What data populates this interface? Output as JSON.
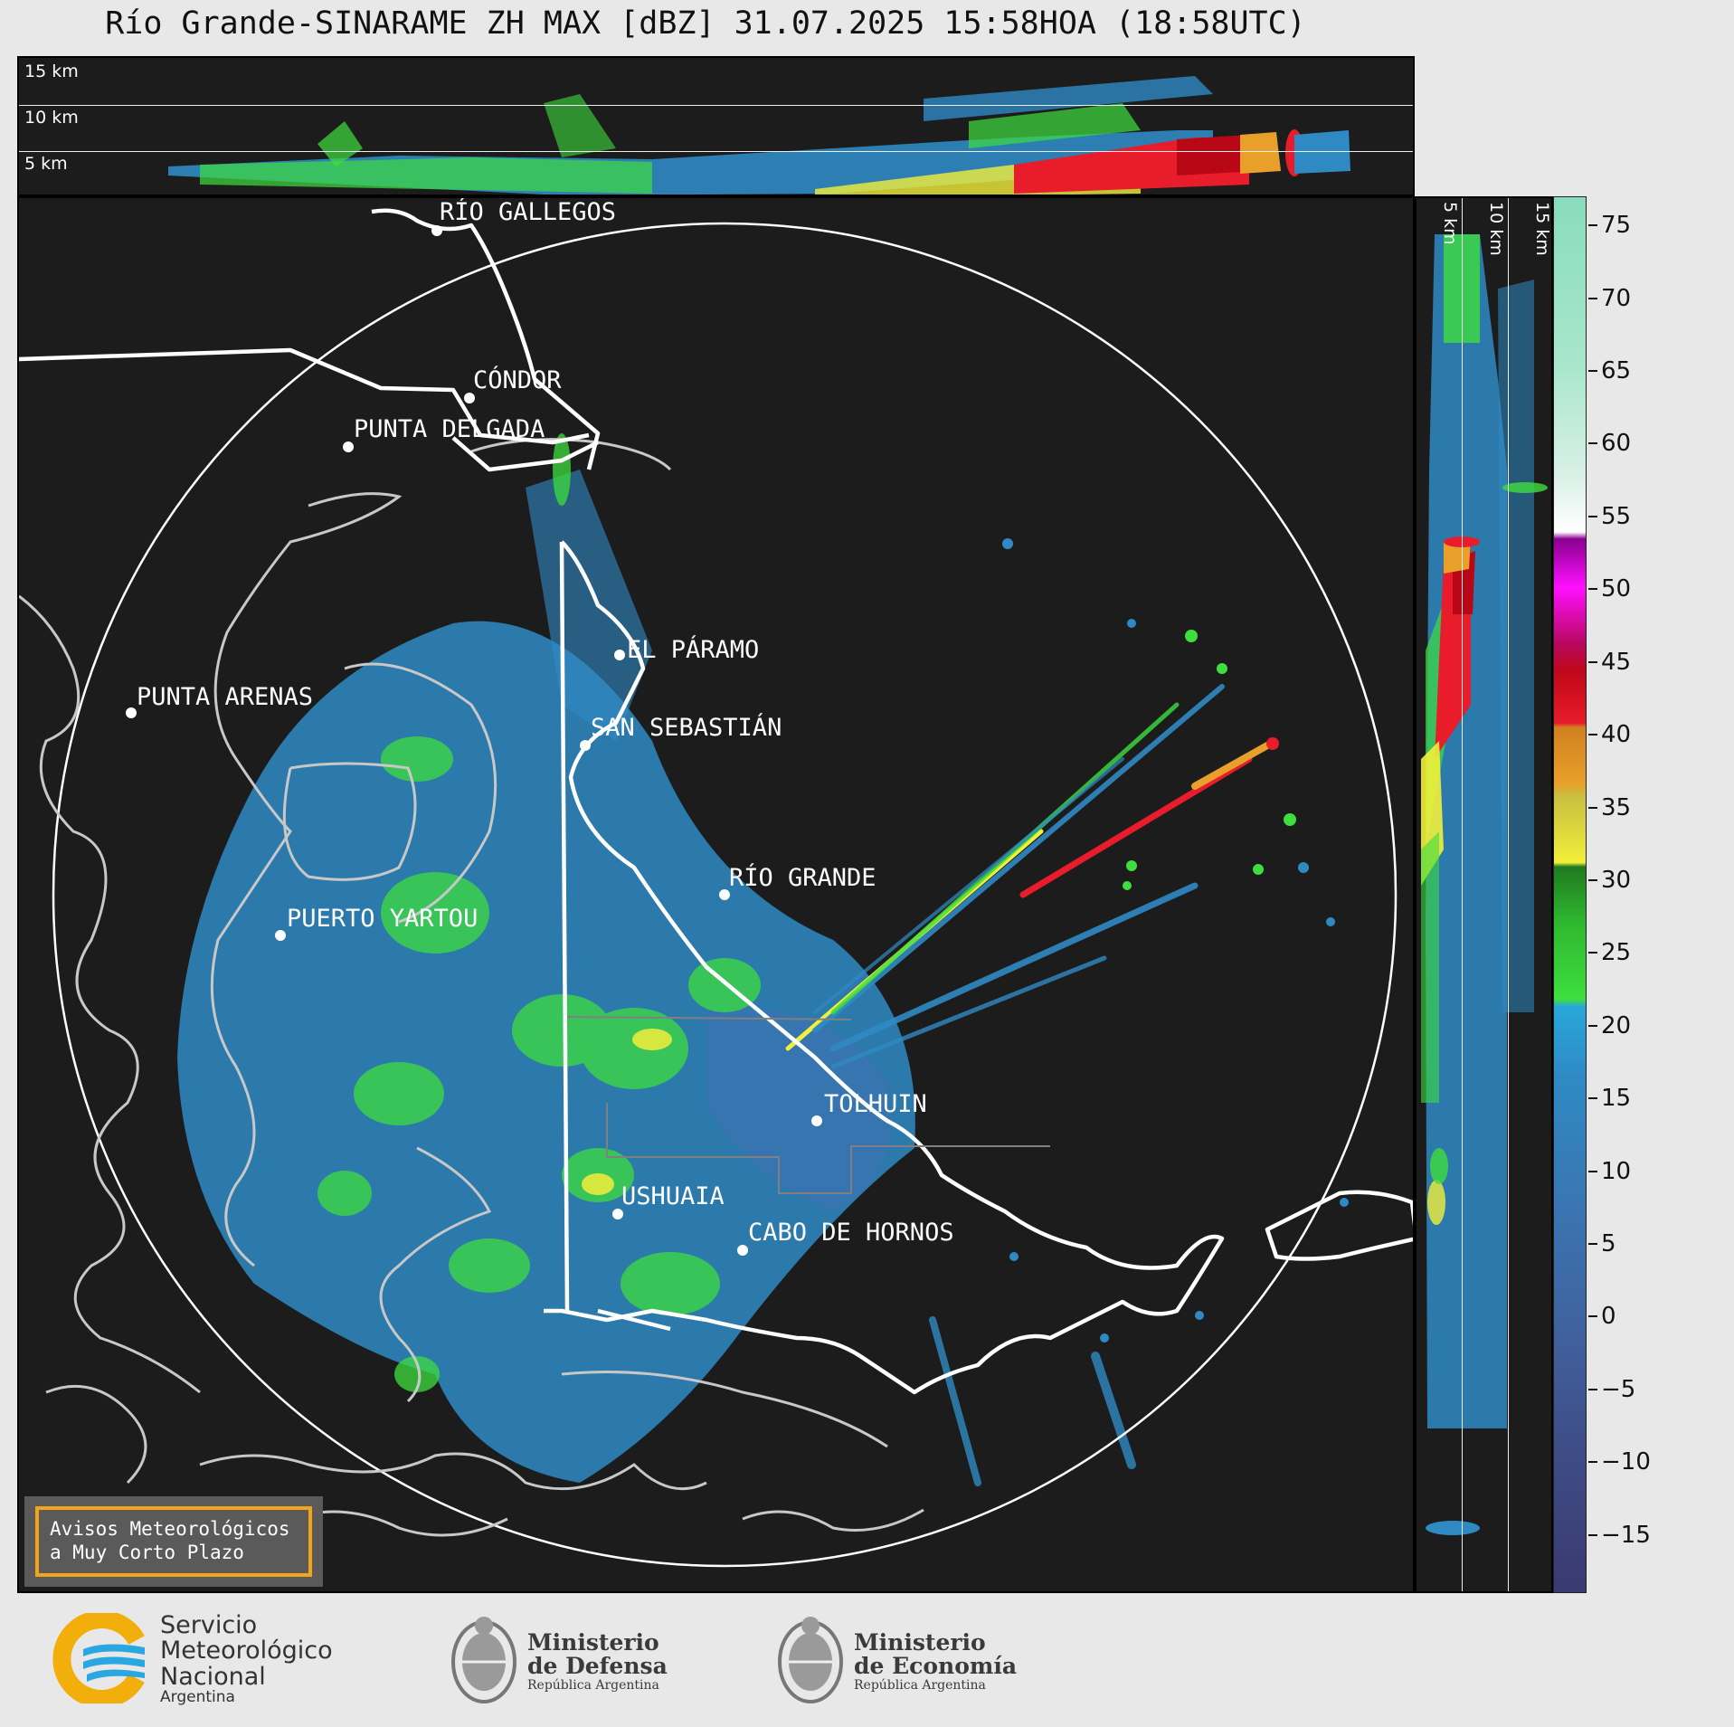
{
  "title": "Río Grande-SINARAME ZH MAX [dBZ] 31.07.2025 15:58HOA (18:58UTC)",
  "top_panel": {
    "height_labels": [
      "15 km",
      "10 km",
      "5 km"
    ]
  },
  "side_panel": {
    "height_labels": [
      "5 km",
      "10 km",
      "15 km"
    ]
  },
  "colorbar": {
    "unit": "dBZ",
    "ticks": [
      "75",
      "70",
      "65",
      "60",
      "55",
      "50",
      "45",
      "40",
      "35",
      "30",
      "25",
      "20",
      "15",
      "10",
      "5",
      "0",
      "−5",
      "−10",
      "−15"
    ],
    "min": -19,
    "max": 77
  },
  "cities": [
    {
      "name": "RÍO GALLEGOS"
    },
    {
      "name": "CÓNDOR"
    },
    {
      "name": "PUNTA DELGADA"
    },
    {
      "name": "EL PÁRAMO"
    },
    {
      "name": "PUNTA ARENAS"
    },
    {
      "name": "SAN SEBASTIÁN"
    },
    {
      "name": "RÍO GRANDE"
    },
    {
      "name": "PUERTO YARTOU"
    },
    {
      "name": "TOLHUIN"
    },
    {
      "name": "USHUAIA"
    },
    {
      "name": "CABO DE HORNOS"
    }
  ],
  "warnings_box": {
    "line1": "Avisos Meteorológicos",
    "line2": "a Muy Corto Plazo"
  },
  "logos": {
    "smn": {
      "line1": "Servicio",
      "line2": "Meteorológico",
      "line3": "Nacional",
      "line4": "Argentina"
    },
    "defensa": {
      "line1": "Ministerio",
      "line2": "de Defensa",
      "line3": "República Argentina"
    },
    "economia": {
      "line1": "Ministerio",
      "line2": "de Economía",
      "line3": "República Argentina"
    }
  },
  "colors": {
    "background": "#1c1c1c",
    "echo_weak": "#2f8ac4",
    "echo_moderate": "#3ede3e",
    "echo_strong": "#e81c2a",
    "warning_border": "#f2a41a"
  }
}
